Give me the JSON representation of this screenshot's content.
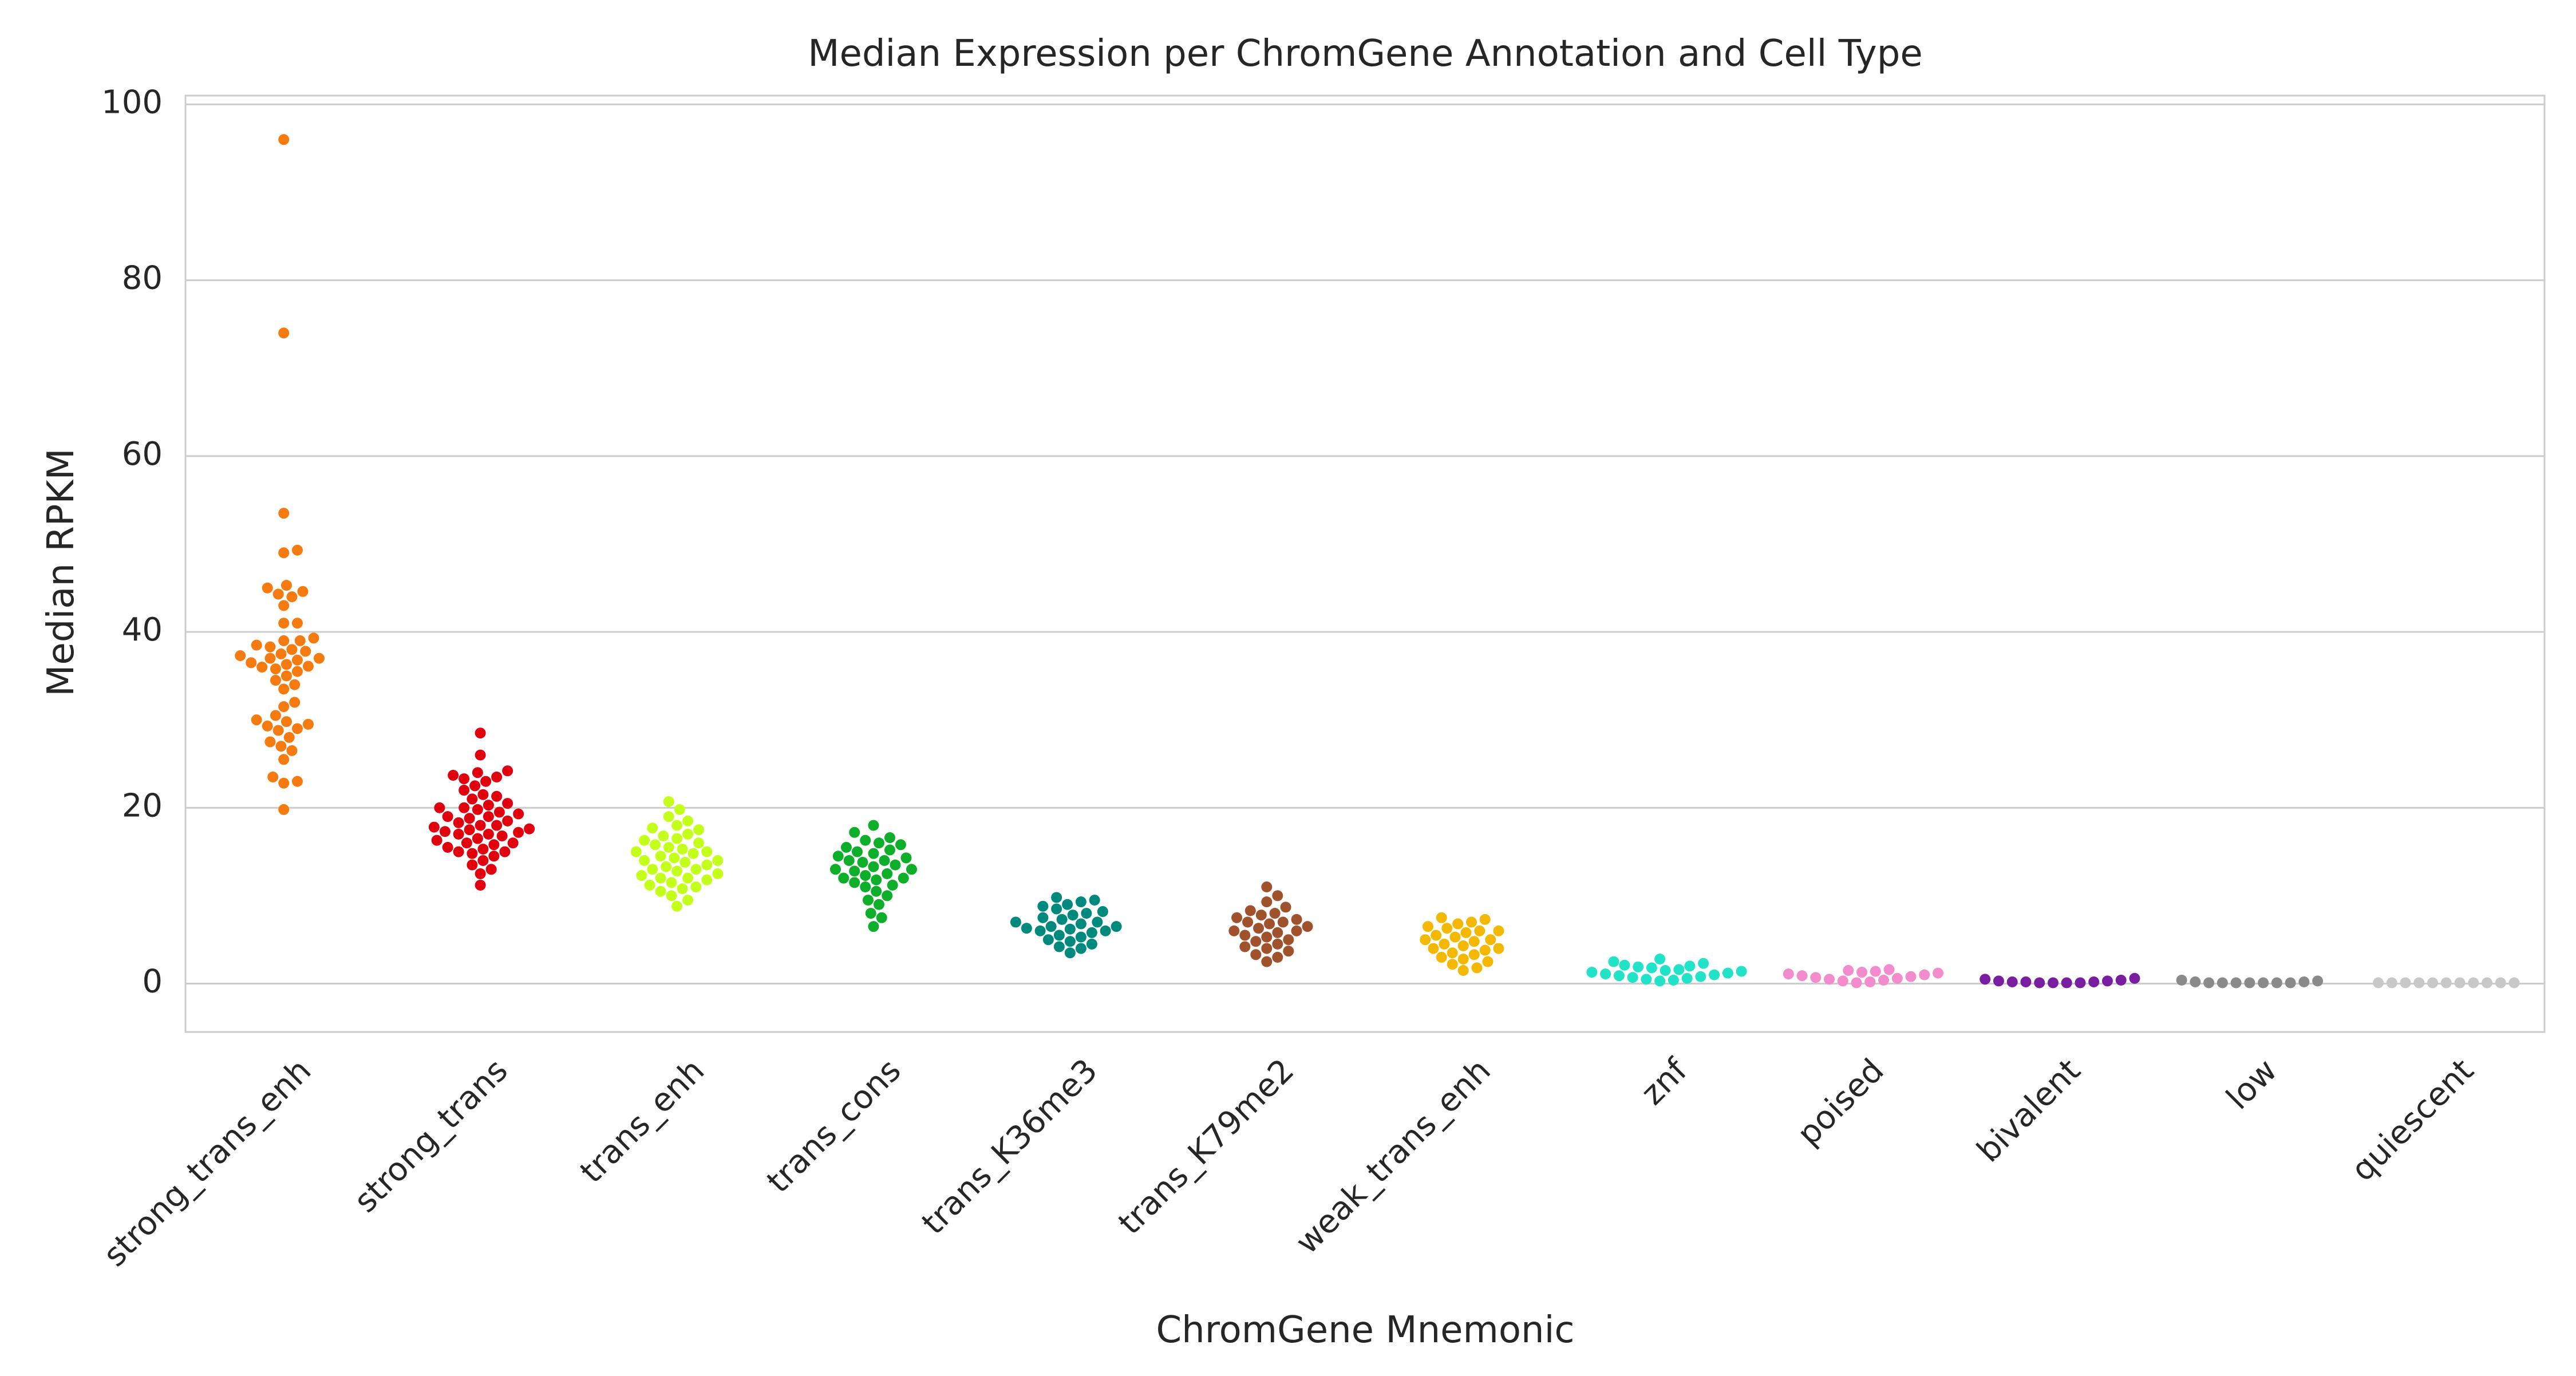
{
  "chart_data": {
    "type": "swarm",
    "title": "Median Expression per ChromGene Annotation and Cell Type",
    "x_label": "ChromGene Mnemonic",
    "y_label": "Median RPKM",
    "ylim": [
      -5.5,
      101
    ],
    "yticks": [
      0,
      20,
      40,
      60,
      80,
      100
    ],
    "grid": true,
    "categories": [
      "strong_trans_enh",
      "strong_trans",
      "trans_enh",
      "trans_cons",
      "trans_K36me3",
      "trans_K79me2",
      "weak_trans_enh",
      "znf",
      "poised",
      "bivalent",
      "low",
      "quiescent"
    ],
    "colors": [
      "#f57a10",
      "#e0000e",
      "#c4ff1c",
      "#0daf2a",
      "#00897d",
      "#a0522d",
      "#f5b800",
      "#22e3c8",
      "#f28ccc",
      "#7a1ea1",
      "#8a8a8a",
      "#c8c8c8"
    ],
    "values": [
      [
        96,
        74,
        53.5,
        49.3,
        49,
        45.3,
        45,
        44.6,
        44.3,
        44,
        43,
        41,
        41,
        39.3,
        39,
        39,
        38.5,
        38.3,
        38,
        37.8,
        37.5,
        37.3,
        37,
        37,
        36.8,
        36.5,
        36.3,
        36.1,
        36,
        35.8,
        35.5,
        35,
        34.5,
        34,
        33.5,
        32,
        31.5,
        30.5,
        30,
        29.8,
        29.5,
        29.3,
        29,
        28.8,
        28,
        27.5,
        27,
        26.5,
        25.5,
        23.5,
        23,
        22.8,
        19.8
      ],
      [
        28.5,
        26,
        24.2,
        24,
        23.7,
        23.5,
        23.3,
        23,
        22.5,
        22,
        21.5,
        21.3,
        21,
        20.5,
        20.3,
        20,
        20,
        19.8,
        19.5,
        19.3,
        19,
        19,
        18.8,
        18.5,
        18.3,
        18,
        18,
        17.8,
        17.6,
        17.5,
        17.3,
        17.2,
        17,
        17,
        16.8,
        16.5,
        16.3,
        16,
        16,
        15.8,
        15.5,
        15.3,
        15,
        15,
        14.8,
        14.5,
        14,
        13.5,
        13,
        12.5,
        11.2
      ],
      [
        20.7,
        19.8,
        19,
        18.5,
        18,
        17.7,
        17.5,
        17,
        16.8,
        16.5,
        16.3,
        16,
        15.8,
        15.5,
        15.3,
        15,
        15,
        14.8,
        14.5,
        14.3,
        14,
        14,
        13.8,
        13.5,
        13.3,
        13,
        13,
        12.8,
        12.5,
        12.3,
        12,
        12,
        11.8,
        11.5,
        11.2,
        11,
        10.8,
        10.5,
        10,
        9.5,
        8.8
      ],
      [
        18,
        17.2,
        16.6,
        16.3,
        16,
        15.8,
        15.5,
        15.2,
        15,
        14.8,
        14.5,
        14.3,
        14,
        14,
        13.8,
        13.5,
        13.3,
        13,
        13,
        12.8,
        12.5,
        12.3,
        12,
        12,
        11.8,
        11.5,
        11.2,
        11,
        10.5,
        10,
        9.5,
        9,
        8,
        7.5,
        6.5
      ],
      [
        9.8,
        9.5,
        9.3,
        9,
        8.8,
        8.5,
        8.2,
        8,
        7.8,
        7.5,
        7.3,
        7,
        7,
        6.8,
        6.5,
        6.5,
        6.3,
        6.2,
        6,
        6,
        5.8,
        5.5,
        5.3,
        5,
        4.8,
        4.5,
        4.2,
        4,
        3.5
      ],
      [
        11,
        10,
        9.3,
        8.7,
        8.3,
        8,
        7.8,
        7.5,
        7.3,
        7,
        7,
        6.8,
        6.5,
        6.3,
        6,
        6,
        5.8,
        5.5,
        5.3,
        5,
        4.8,
        4.5,
        4.2,
        4,
        3.7,
        3.3,
        3,
        2.5
      ],
      [
        7.5,
        7.3,
        7,
        6.8,
        6.5,
        6.3,
        6,
        6,
        5.8,
        5.5,
        5.3,
        5,
        5,
        4.8,
        4.5,
        4.3,
        4,
        4,
        3.8,
        3.5,
        3.3,
        3,
        2.8,
        2.5,
        2.2,
        1.8,
        1.5
      ],
      [
        2.8,
        2.5,
        2.3,
        2.1,
        2,
        1.9,
        1.8,
        1.6,
        1.5,
        1.4,
        1.3,
        1.2,
        1.1,
        1,
        0.9,
        0.8,
        0.7,
        0.6,
        0.5,
        0.4,
        0.3
      ],
      [
        1.6,
        1.5,
        1.4,
        1.3,
        1.2,
        1.1,
        1,
        0.9,
        0.8,
        0.7,
        0.6,
        0.5,
        0.4,
        0.3,
        0.2,
        0.1
      ],
      [
        0.6,
        0.5,
        0.4,
        0.3,
        0.3,
        0.2,
        0.2,
        0.2,
        0.1,
        0.1,
        0.1,
        0.1
      ],
      [
        0.4,
        0.3,
        0.2,
        0.2,
        0.1,
        0.1,
        0.1,
        0.1,
        0.1,
        0.1,
        0.1
      ],
      [
        0.1,
        0.1,
        0.1,
        0.1,
        0.1,
        0.1,
        0.1,
        0.1,
        0.1,
        0.1,
        0.1
      ]
    ]
  }
}
